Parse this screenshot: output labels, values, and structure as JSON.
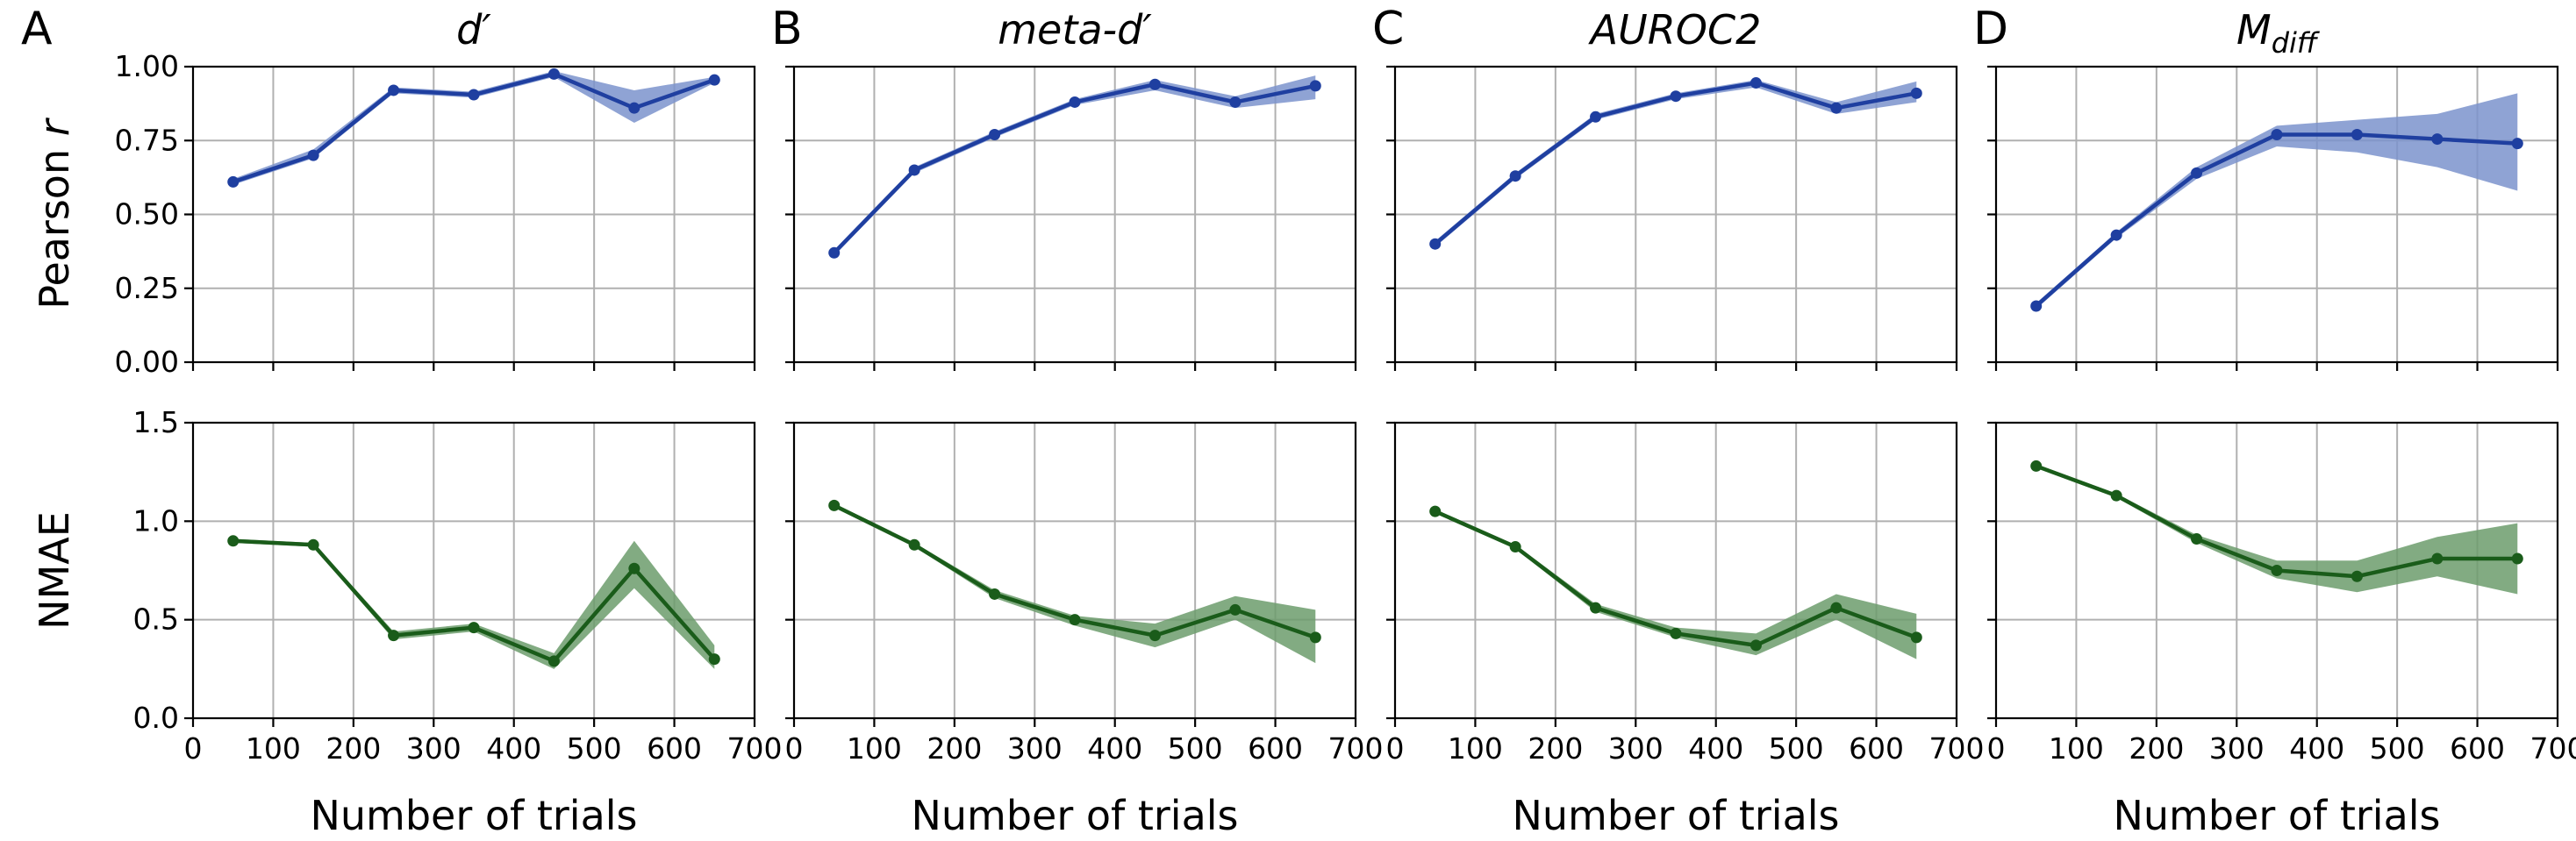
{
  "chart_data": {
    "type": "line",
    "xlabel": "Number of trials",
    "xlim": [
      0,
      700
    ],
    "x_ticks": [
      0,
      100,
      200,
      300,
      400,
      500,
      600,
      700
    ],
    "x": [
      50,
      150,
      250,
      350,
      450,
      550,
      650
    ],
    "grid": true,
    "colors": {
      "pearson": "#1f3fa0",
      "pearson_band": "#7b93cc",
      "nmae": "#1a5c1a",
      "nmae_band": "#6c9c6c"
    },
    "rows": [
      {
        "metric": "pearson",
        "ylabel": "Pearson ",
        "ylabel_italic": "r",
        "ylim": [
          0,
          1.0
        ],
        "y_ticks": [
          0.0,
          0.25,
          0.5,
          0.75,
          1.0
        ],
        "y_tick_labels": [
          "0.00",
          "0.25",
          "0.50",
          "0.75",
          "1.00"
        ]
      },
      {
        "metric": "nmae",
        "ylabel": "NMAE",
        "ylabel_italic": "",
        "ylim": [
          0,
          1.5
        ],
        "y_ticks": [
          0.0,
          0.5,
          1.0,
          1.5
        ],
        "y_tick_labels": [
          "0.0",
          "0.5",
          "1.0",
          "1.5"
        ]
      }
    ],
    "panels": [
      {
        "letter": "A",
        "title": "d′",
        "pearson": {
          "values": [
            0.61,
            0.7,
            0.92,
            0.905,
            0.975,
            0.86,
            0.955
          ],
          "lower": [
            0.6,
            0.69,
            0.91,
            0.895,
            0.965,
            0.81,
            0.945
          ],
          "upper": [
            0.62,
            0.72,
            0.93,
            0.915,
            0.985,
            0.92,
            0.965
          ]
        },
        "nmae": {
          "values": [
            0.9,
            0.88,
            0.42,
            0.46,
            0.29,
            0.76,
            0.3
          ],
          "lower": [
            0.89,
            0.87,
            0.4,
            0.44,
            0.25,
            0.66,
            0.25
          ],
          "upper": [
            0.91,
            0.89,
            0.44,
            0.48,
            0.33,
            0.9,
            0.37
          ]
        }
      },
      {
        "letter": "B",
        "title": "meta-d′",
        "pearson": {
          "values": [
            0.37,
            0.65,
            0.77,
            0.88,
            0.94,
            0.88,
            0.935
          ],
          "lower": [
            0.36,
            0.64,
            0.76,
            0.87,
            0.92,
            0.86,
            0.89
          ],
          "upper": [
            0.38,
            0.66,
            0.78,
            0.89,
            0.955,
            0.9,
            0.97
          ]
        },
        "nmae": {
          "values": [
            1.08,
            0.88,
            0.63,
            0.5,
            0.42,
            0.55,
            0.41
          ],
          "lower": [
            1.07,
            0.87,
            0.61,
            0.47,
            0.36,
            0.5,
            0.28
          ],
          "upper": [
            1.09,
            0.89,
            0.65,
            0.52,
            0.48,
            0.62,
            0.55
          ]
        }
      },
      {
        "letter": "C",
        "title": "AUROC2",
        "pearson": {
          "values": [
            0.4,
            0.63,
            0.83,
            0.9,
            0.945,
            0.86,
            0.91
          ],
          "lower": [
            0.39,
            0.62,
            0.82,
            0.89,
            0.93,
            0.84,
            0.88
          ],
          "upper": [
            0.41,
            0.64,
            0.84,
            0.91,
            0.955,
            0.88,
            0.95
          ]
        },
        "nmae": {
          "values": [
            1.05,
            0.87,
            0.56,
            0.43,
            0.37,
            0.56,
            0.41
          ],
          "lower": [
            1.04,
            0.86,
            0.54,
            0.41,
            0.32,
            0.5,
            0.3
          ],
          "upper": [
            1.06,
            0.88,
            0.58,
            0.46,
            0.43,
            0.63,
            0.53
          ]
        }
      },
      {
        "letter": "D",
        "title": "M",
        "title_sub": "diff",
        "pearson": {
          "values": [
            0.19,
            0.43,
            0.64,
            0.77,
            0.77,
            0.755,
            0.74
          ],
          "lower": [
            0.18,
            0.42,
            0.62,
            0.73,
            0.71,
            0.66,
            0.58
          ],
          "upper": [
            0.2,
            0.44,
            0.66,
            0.8,
            0.82,
            0.84,
            0.91
          ]
        },
        "nmae": {
          "values": [
            1.28,
            1.13,
            0.91,
            0.75,
            0.72,
            0.81,
            0.81
          ],
          "lower": [
            1.27,
            1.12,
            0.89,
            0.71,
            0.64,
            0.72,
            0.63
          ],
          "upper": [
            1.29,
            1.14,
            0.93,
            0.8,
            0.8,
            0.92,
            0.99
          ]
        }
      }
    ]
  }
}
